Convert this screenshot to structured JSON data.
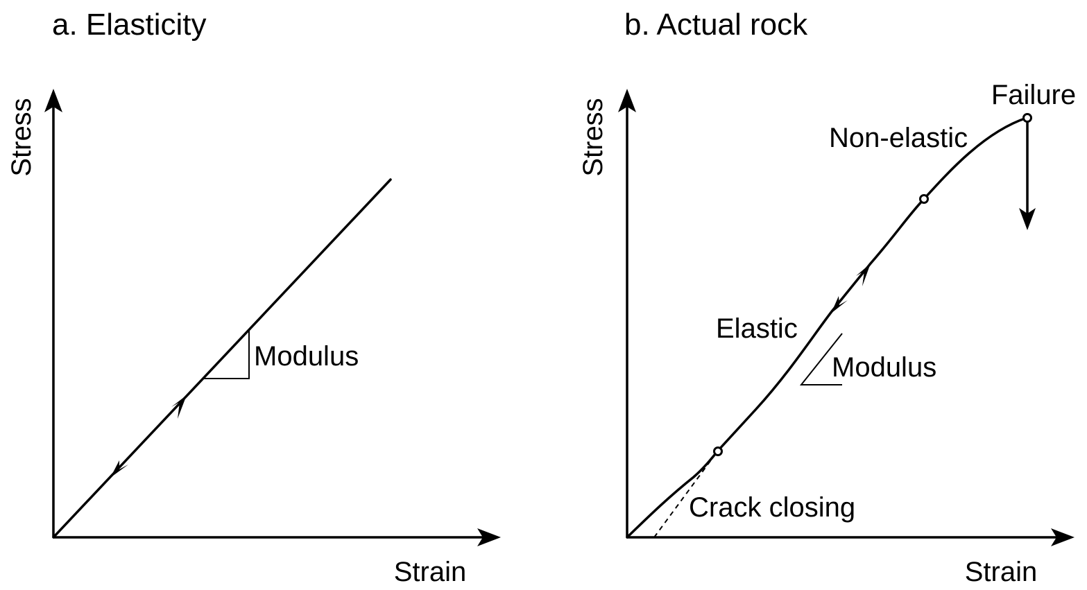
{
  "panel_a": {
    "title": "a. Elasticity",
    "y_label": "Stress",
    "x_label": "Strain",
    "slope_label": "Modulus"
  },
  "panel_b": {
    "title": "b. Actual rock",
    "y_label": "Stress",
    "x_label": "Strain",
    "slope_label": "Modulus",
    "annotations": {
      "failure": "Failure",
      "non_elastic": "Non-elastic",
      "elastic": "Elastic",
      "crack_closing": "Crack closing"
    }
  }
}
